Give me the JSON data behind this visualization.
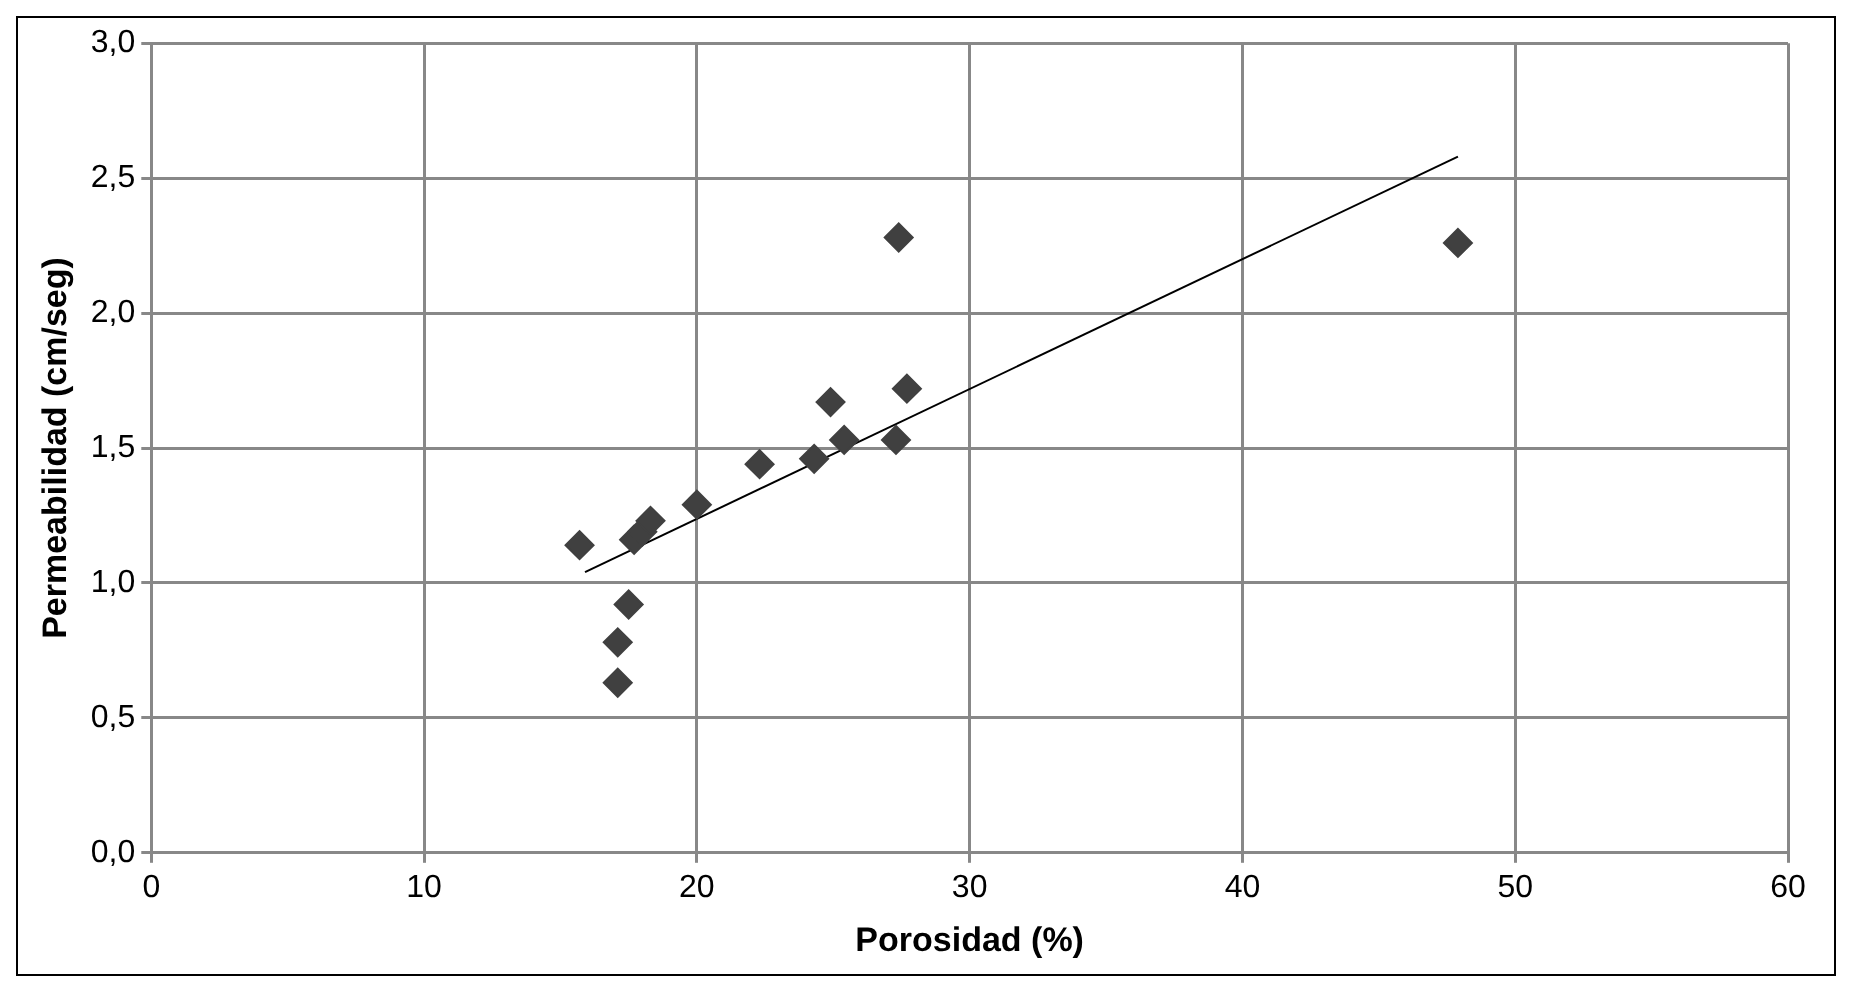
{
  "chart_data": {
    "type": "scatter",
    "xlabel": "Porosidad (%)",
    "ylabel": "Permeabilidad (cm/seg)",
    "series": [
      {
        "marker": "diamond",
        "color": "#404040",
        "x": [
          15.7,
          17.1,
          17.1,
          17.5,
          17.7,
          18.0,
          18.3,
          20.0,
          22.3,
          24.3,
          24.9,
          25.4,
          27.3,
          27.4,
          27.7,
          47.9
        ],
        "values": [
          1.14,
          0.63,
          0.78,
          0.92,
          1.16,
          1.19,
          1.23,
          1.29,
          1.44,
          1.46,
          1.67,
          1.53,
          1.53,
          2.28,
          1.72,
          2.26
        ]
      },
      {
        "type": "line",
        "color": "#000000",
        "x": [
          15.9,
          47.9
        ],
        "values": [
          1.04,
          2.58
        ]
      }
    ],
    "xlim": [
      0,
      60
    ],
    "xticks": [
      0,
      10,
      20,
      30,
      40,
      50,
      60
    ],
    "ylim": [
      0,
      3
    ],
    "yticks": [
      {
        "value": 0,
        "label": "0,0"
      },
      {
        "value": 0.5,
        "label": "0,5"
      },
      {
        "value": 1,
        "label": "1,0"
      },
      {
        "value": 1.5,
        "label": "1,5"
      },
      {
        "value": 2,
        "label": "2,0"
      },
      {
        "value": 2.5,
        "label": "2,5"
      },
      {
        "value": 3,
        "label": "3,0"
      }
    ],
    "grid": true,
    "legend": false
  }
}
